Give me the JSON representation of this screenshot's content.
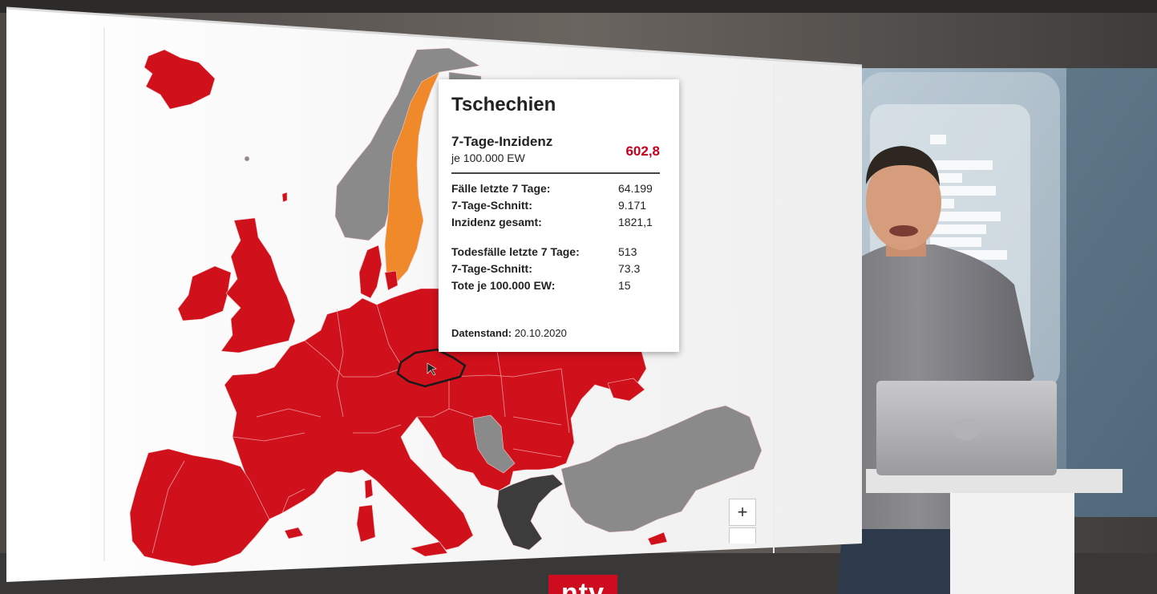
{
  "map": {
    "tooltip": {
      "country": "Tschechien",
      "incidence_label": "7-Tage-Inzidenz",
      "incidence_sublabel": "je 100.000 EW",
      "incidence_value": "602,8",
      "cases_rows": [
        {
          "label": "Fälle letzte 7 Tage:",
          "value": "64.199"
        },
        {
          "label": "7-Tage-Schnitt:",
          "value": "9.171"
        },
        {
          "label": "Inzidenz gesamt:",
          "value": "1821,1"
        }
      ],
      "deaths_rows": [
        {
          "label": "Todesfälle letzte 7 Tage:",
          "value": "513"
        },
        {
          "label": "7-Tage-Schnitt:",
          "value": "73.3"
        },
        {
          "label": "Tote je 100.000 EW:",
          "value": "15"
        }
      ],
      "date_label": "Datenstand:",
      "date_value": "20.10.2020"
    },
    "zoom_in_label": "+",
    "colors": {
      "high": "#d0101b",
      "medium": "#f0892a",
      "no_data": "#8a8a8a",
      "dark": "#3c3c3c",
      "selected_border": "#1a1a1a",
      "value_text": "#c4001d"
    },
    "highlighted_country": "Tschechien"
  },
  "broadcaster_logo": "ntv"
}
